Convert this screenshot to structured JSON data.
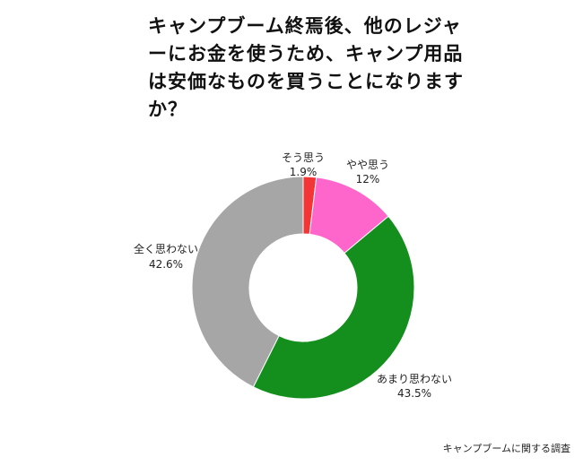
{
  "chart_data": {
    "type": "pie",
    "title": "キャンプブーム終焉後、他のレジャーにお金を使うため、キャンプ用品は安価なものを買うことになりますか？",
    "categories": [
      "そう思う",
      "やや思う",
      "あまり思わない",
      "全く思わない"
    ],
    "values": [
      1.9,
      12,
      43.5,
      42.6
    ],
    "value_labels": [
      "1.9%",
      "12%",
      "43.5%",
      "42.6%"
    ],
    "colors": [
      "#f43535",
      "#ff66cc",
      "#148f1e",
      "#a6a6a6"
    ],
    "donut": true,
    "legend": "none"
  },
  "source": "キャンプブームに関する調査"
}
